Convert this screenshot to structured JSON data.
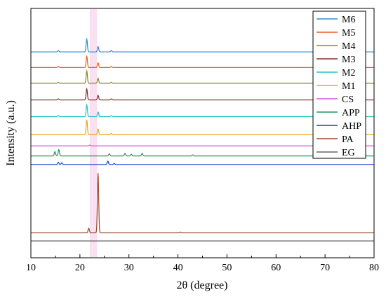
{
  "chart_data": {
    "type": "line",
    "xlabel": "2θ  (degree)",
    "ylabel": "Intensity (a.u.)",
    "xlim": [
      10,
      80
    ],
    "xticks": [
      "10",
      "20",
      "30",
      "40",
      "50",
      "60",
      "70",
      "80"
    ],
    "yticks_shown": false,
    "grid": false,
    "legend_position": "top-right",
    "highlight_band": {
      "x": [
        22,
        23.5
      ],
      "color": "#f7d9ee"
    },
    "series": [
      {
        "name": "M6",
        "color": "#2b8fd0",
        "baseline": 0.885,
        "peaks": [
          [
            21.4,
            0.06
          ],
          [
            23.7,
            0.025
          ],
          [
            15.6,
            0.006
          ],
          [
            26.4,
            0.006
          ]
        ]
      },
      {
        "name": "M5",
        "color": "#f05a22",
        "baseline": 0.812,
        "peaks": [
          [
            21.4,
            0.052
          ],
          [
            23.7,
            0.022
          ],
          [
            15.6,
            0.005
          ],
          [
            26.4,
            0.005
          ]
        ]
      },
      {
        "name": "M4",
        "color": "#8a8a1a",
        "baseline": 0.738,
        "peaks": [
          [
            21.4,
            0.058
          ],
          [
            23.7,
            0.024
          ],
          [
            15.6,
            0.005
          ],
          [
            26.4,
            0.005
          ]
        ]
      },
      {
        "name": "M3",
        "color": "#8b2b2b",
        "baseline": 0.66,
        "peaks": [
          [
            21.4,
            0.052
          ],
          [
            23.7,
            0.022
          ],
          [
            15.6,
            0.005
          ],
          [
            26.4,
            0.005
          ]
        ]
      },
      {
        "name": "M2",
        "color": "#22c3c0",
        "baseline": 0.582,
        "peaks": [
          [
            21.4,
            0.055
          ],
          [
            23.7,
            0.022
          ],
          [
            15.6,
            0.005
          ],
          [
            26.4,
            0.005
          ]
        ]
      },
      {
        "name": "M1",
        "color": "#f0a020",
        "baseline": 0.498,
        "peaks": [
          [
            21.4,
            0.068
          ],
          [
            23.7,
            0.026
          ],
          [
            26.4,
            0.005
          ]
        ]
      },
      {
        "name": "CS",
        "color": "#cc55dd",
        "baseline": 0.445,
        "peaks": [
          [
            22.0,
            0.004
          ]
        ]
      },
      {
        "name": "APP",
        "color": "#1a9a5a",
        "baseline": 0.398,
        "peaks": [
          [
            14.9,
            0.02
          ],
          [
            15.7,
            0.03
          ],
          [
            26.0,
            0.01
          ],
          [
            29.2,
            0.012
          ],
          [
            30.5,
            0.008
          ],
          [
            32.7,
            0.012
          ],
          [
            43.0,
            0.005
          ]
        ]
      },
      {
        "name": "AHP",
        "color": "#1a3fd0",
        "baseline": 0.358,
        "peaks": [
          [
            15.6,
            0.01
          ],
          [
            16.3,
            0.008
          ],
          [
            25.7,
            0.016
          ],
          [
            27.0,
            0.005
          ]
        ]
      },
      {
        "name": "PA",
        "color": "#9a4a2a",
        "baseline": 0.038,
        "peaks": [
          [
            21.8,
            0.022
          ],
          [
            23.7,
            0.28
          ],
          [
            40.5,
            0.004
          ]
        ]
      },
      {
        "name": "EG",
        "color": "#666666",
        "baseline": 0.0,
        "peaks": []
      }
    ]
  }
}
